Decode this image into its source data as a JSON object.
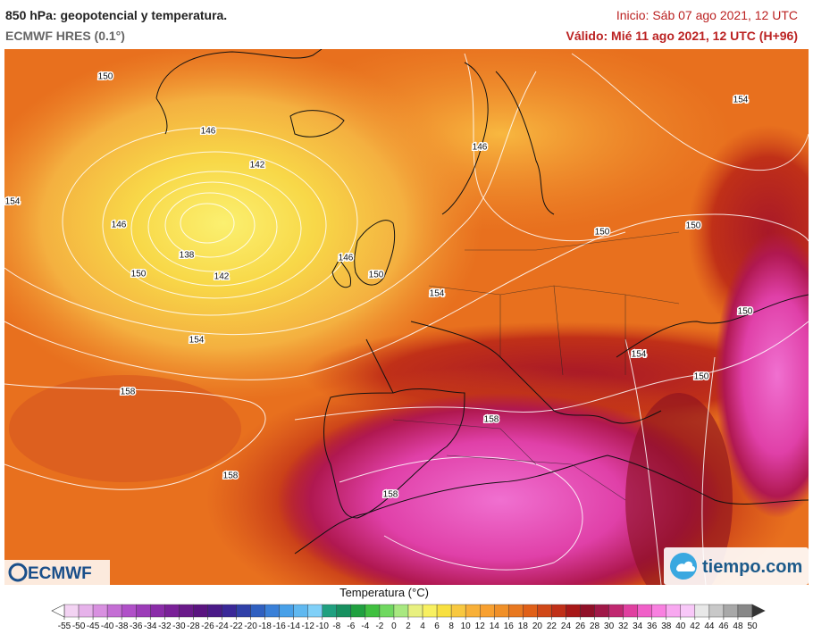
{
  "header": {
    "title": "850 hPa: geopotencial y temperatura.",
    "model": "ECMWF HRES (0.1°)",
    "init": "Inicio: Sáb 07 ago 2021, 12 UTC",
    "valid": "Válido: Mié 11 ago 2021, 12 UTC (H+96)"
  },
  "contours": [
    150,
    146,
    142,
    154,
    146,
    138,
    142,
    150,
    146,
    150,
    154,
    154,
    158,
    158,
    158,
    158,
    146,
    150,
    154,
    150,
    150,
    154,
    150
  ],
  "colorbar": {
    "title": "Temperatura (°C)",
    "ticks": [
      -55,
      -50,
      -45,
      -40,
      -38,
      -36,
      -34,
      -32,
      -30,
      -28,
      -26,
      -24,
      -22,
      -20,
      -18,
      -16,
      -14,
      -12,
      -10,
      -8,
      -6,
      -4,
      -2,
      0,
      2,
      4,
      6,
      8,
      10,
      12,
      14,
      16,
      18,
      20,
      22,
      24,
      26,
      28,
      30,
      32,
      34,
      36,
      38,
      40,
      42,
      44,
      46,
      48,
      50
    ],
    "colors": [
      "#f3d3f3",
      "#e6b2ea",
      "#d890e0",
      "#c46ed4",
      "#b050c8",
      "#9c3cb8",
      "#8a2ca8",
      "#7a2098",
      "#6a1a8a",
      "#5a1480",
      "#4a1a88",
      "#3a2898",
      "#3040a8",
      "#3060c0",
      "#3a80d8",
      "#48a0e8",
      "#60b8f0",
      "#80d0f8",
      "#20a080",
      "#189060",
      "#20a040",
      "#40c040",
      "#70d860",
      "#a8e880",
      "#e8f080",
      "#f8f060",
      "#f8e040",
      "#f8c840",
      "#f8b038",
      "#f8a030",
      "#f09028",
      "#e87820",
      "#e06018",
      "#d04818",
      "#c03018",
      "#a81818",
      "#901028",
      "#a01848",
      "#c02870",
      "#e040a0",
      "#f060c8",
      "#f880e0",
      "#f8a8f0",
      "#f8c8f8",
      "#e8e8e8",
      "#c8c8c8",
      "#a8a8a8",
      "#888888"
    ],
    "under_color": "#ffffff",
    "over_color": "#333333"
  },
  "logos": {
    "left": "ECMWF",
    "right": "tiempo.com"
  }
}
